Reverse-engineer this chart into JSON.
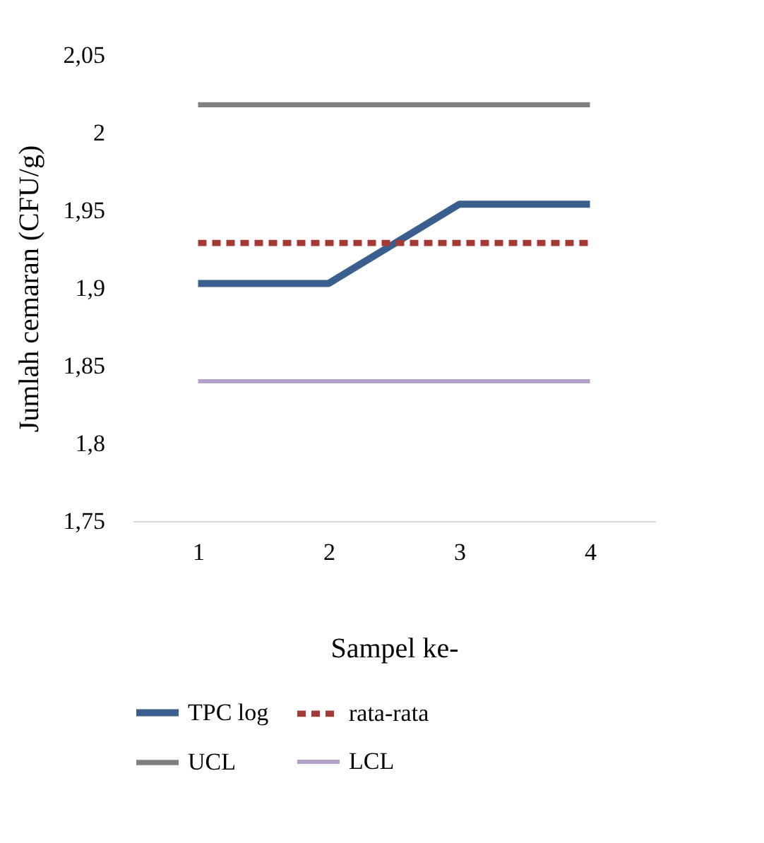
{
  "chart_data": {
    "type": "line",
    "xlabel": "Sampel ke-",
    "ylabel": "Jumlah cemaran (CFU/g)",
    "categories": [
      "1",
      "2",
      "3",
      "4"
    ],
    "series": [
      {
        "name": "TPC log",
        "color": "#3a5f8f",
        "values": [
          1.903,
          1.903,
          1.954,
          1.954
        ],
        "line_style": "solid"
      },
      {
        "name": "rata-rata",
        "color": "#a33a36",
        "values": [
          1.929,
          1.929,
          1.929,
          1.929
        ],
        "line_style": "dashed"
      },
      {
        "name": "UCL",
        "color": "#7f7f7f",
        "values": [
          2.018,
          2.018,
          2.018,
          2.018
        ],
        "line_style": "solid"
      },
      {
        "name": "LCL",
        "color": "#b3a2c7",
        "values": [
          1.84,
          1.84,
          1.84,
          1.84
        ],
        "line_style": "solid"
      }
    ],
    "ylim": [
      1.75,
      2.05
    ],
    "yticks": [
      {
        "value": 1.75,
        "label": "1,75"
      },
      {
        "value": 1.8,
        "label": "1,8"
      },
      {
        "value": 1.85,
        "label": "1,85"
      },
      {
        "value": 1.9,
        "label": "1,9"
      },
      {
        "value": 1.95,
        "label": "1,95"
      },
      2,
      {
        "value": 2.05,
        "label": "2,05"
      }
    ],
    "grid": false,
    "legend": "bottom",
    "marker": "none"
  }
}
